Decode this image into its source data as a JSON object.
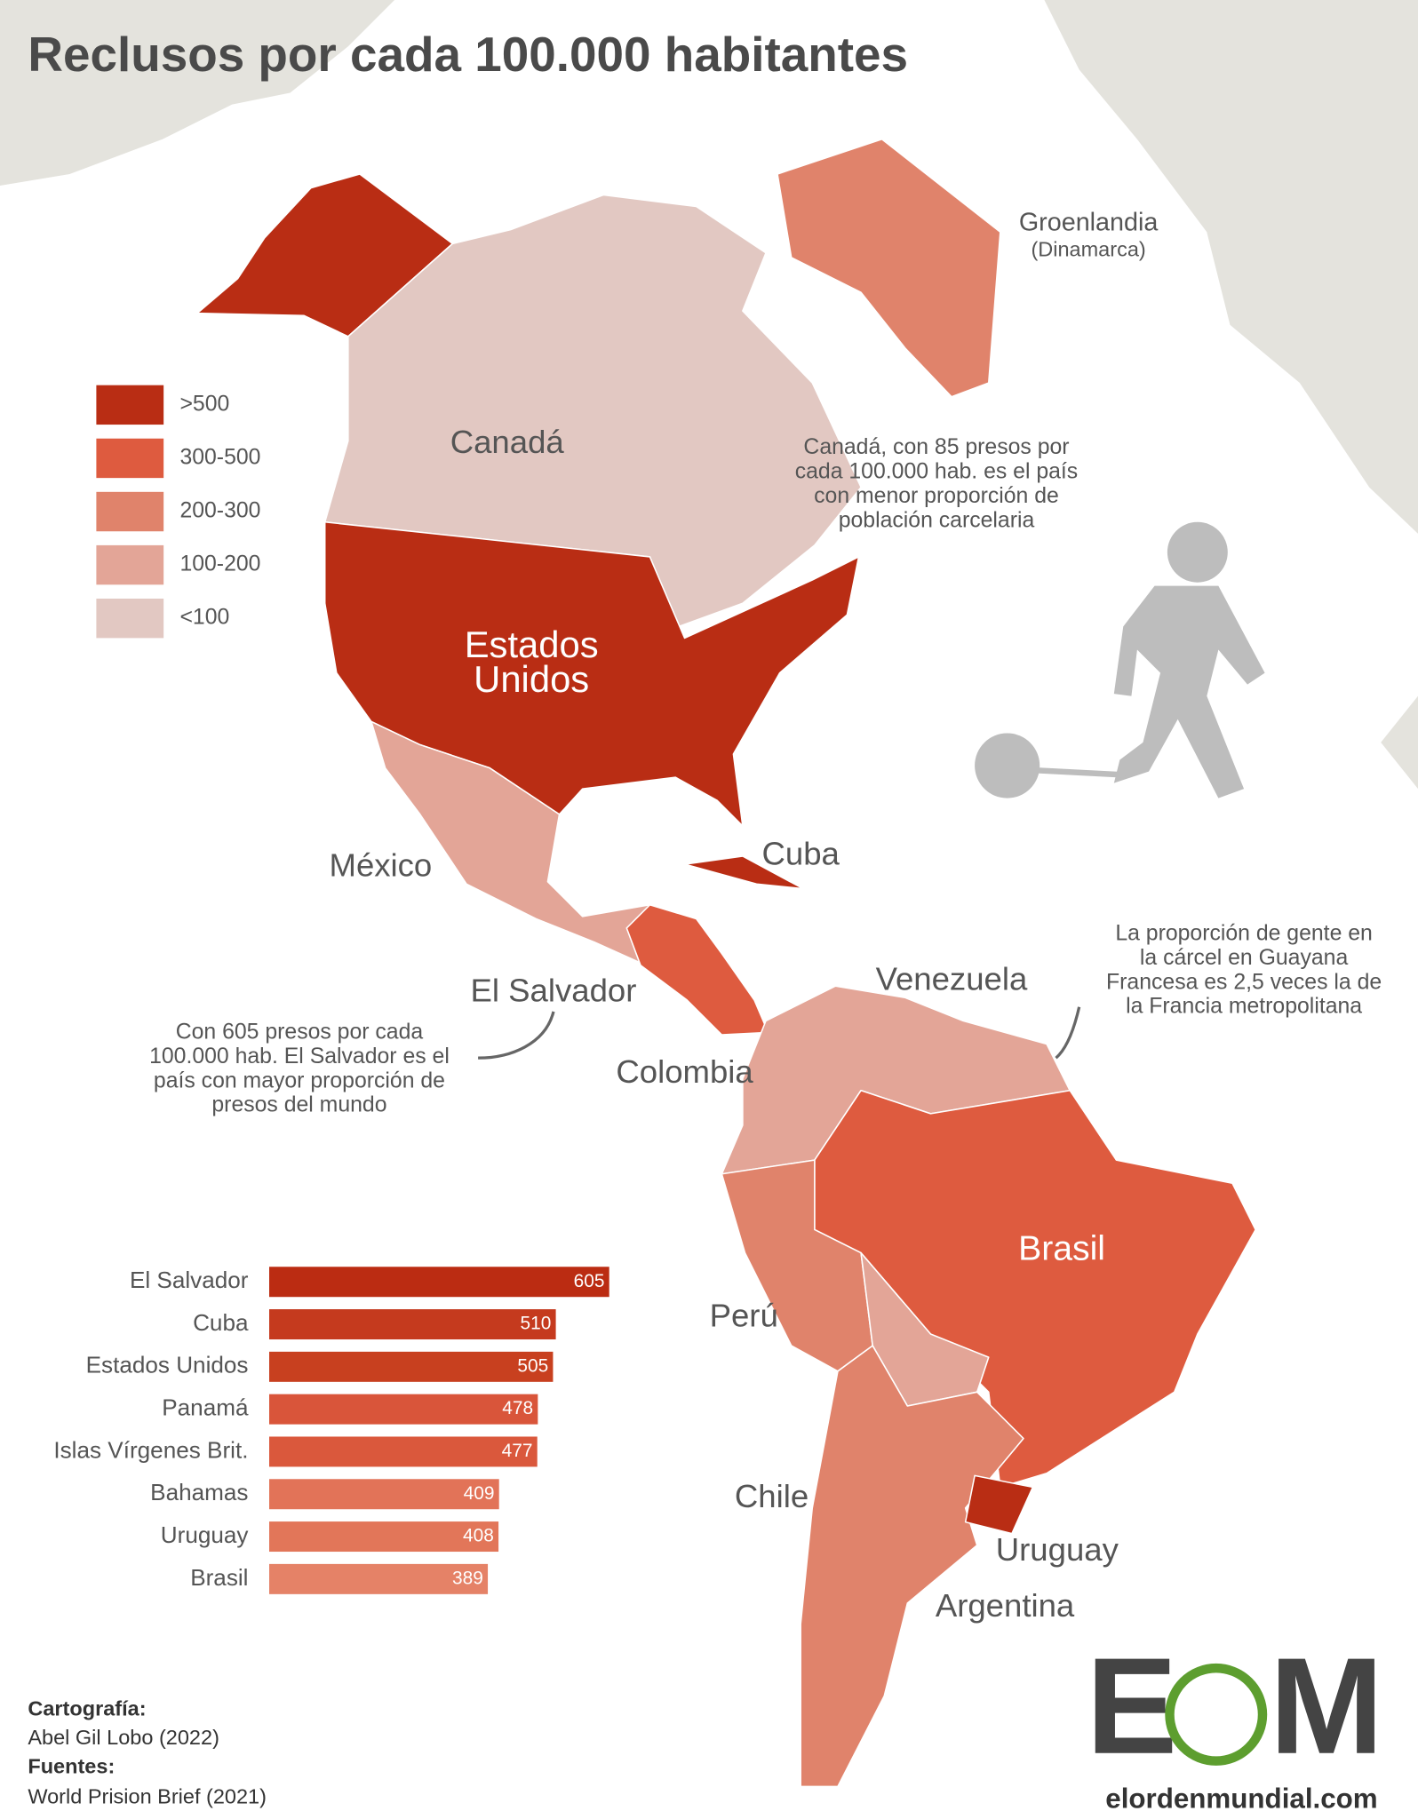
{
  "title": "Reclusos por cada 100.000 habitantes",
  "legend": [
    {
      "label": ">500",
      "color": "#b92d14"
    },
    {
      "label": "300-500",
      "color": "#de5b3f"
    },
    {
      "label": "200-300",
      "color": "#e0836b"
    },
    {
      "label": "100-200",
      "color": "#e3a597"
    },
    {
      "label": "<100",
      "color": "#e2c8c2"
    }
  ],
  "map_labels": {
    "canada": "Canadá",
    "usa": [
      "Estados",
      "Unidos"
    ],
    "greenland": "Groenlandia",
    "greenland_note": "(Dinamarca)",
    "mexico": "México",
    "cuba": "Cuba",
    "el_salvador": "El Salvador",
    "venezuela": "Venezuela",
    "colombia": "Colombia",
    "brasil": "Brasil",
    "peru": "Perú",
    "chile": "Chile",
    "uruguay": "Uruguay",
    "argentina": "Argentina"
  },
  "annotations": {
    "canada": [
      "Canadá, con 85 presos por",
      "cada 100.000 hab. es el país",
      "con menor proporción de",
      "población carcelaria"
    ],
    "el_salvador": [
      "Con 605 presos por cada",
      "100.000 hab. El Salvador es el",
      "país con mayor proporción de",
      "presos del mundo"
    ],
    "guayana": [
      "La proporción de gente en",
      "la cárcel en Guayana",
      "Francesa es 2,5 veces la de",
      "la Francia metropolitana"
    ]
  },
  "chart_data": {
    "type": "bar",
    "orientation": "horizontal",
    "categories": [
      "El Salvador",
      "Cuba",
      "Estados Unidos",
      "Panamá",
      "Islas Vírgenes Brit.",
      "Bahamas",
      "Uruguay",
      "Brasil"
    ],
    "values": [
      605,
      510,
      505,
      478,
      477,
      409,
      408,
      389
    ],
    "colors": [
      "#bb2c12",
      "#c53a1e",
      "#c8401f",
      "#d9553a",
      "#da583c",
      "#e27358",
      "#e27659",
      "#e58267"
    ]
  },
  "credits": {
    "cartography_heading": "Cartografía:",
    "cartography": "Abel Gil Lobo (2022)",
    "sources_heading": "Fuentes:",
    "sources": "World Prision Brief (2021)"
  },
  "logo": {
    "left": "E",
    "right": "M",
    "site": "elordenmundial.com"
  }
}
